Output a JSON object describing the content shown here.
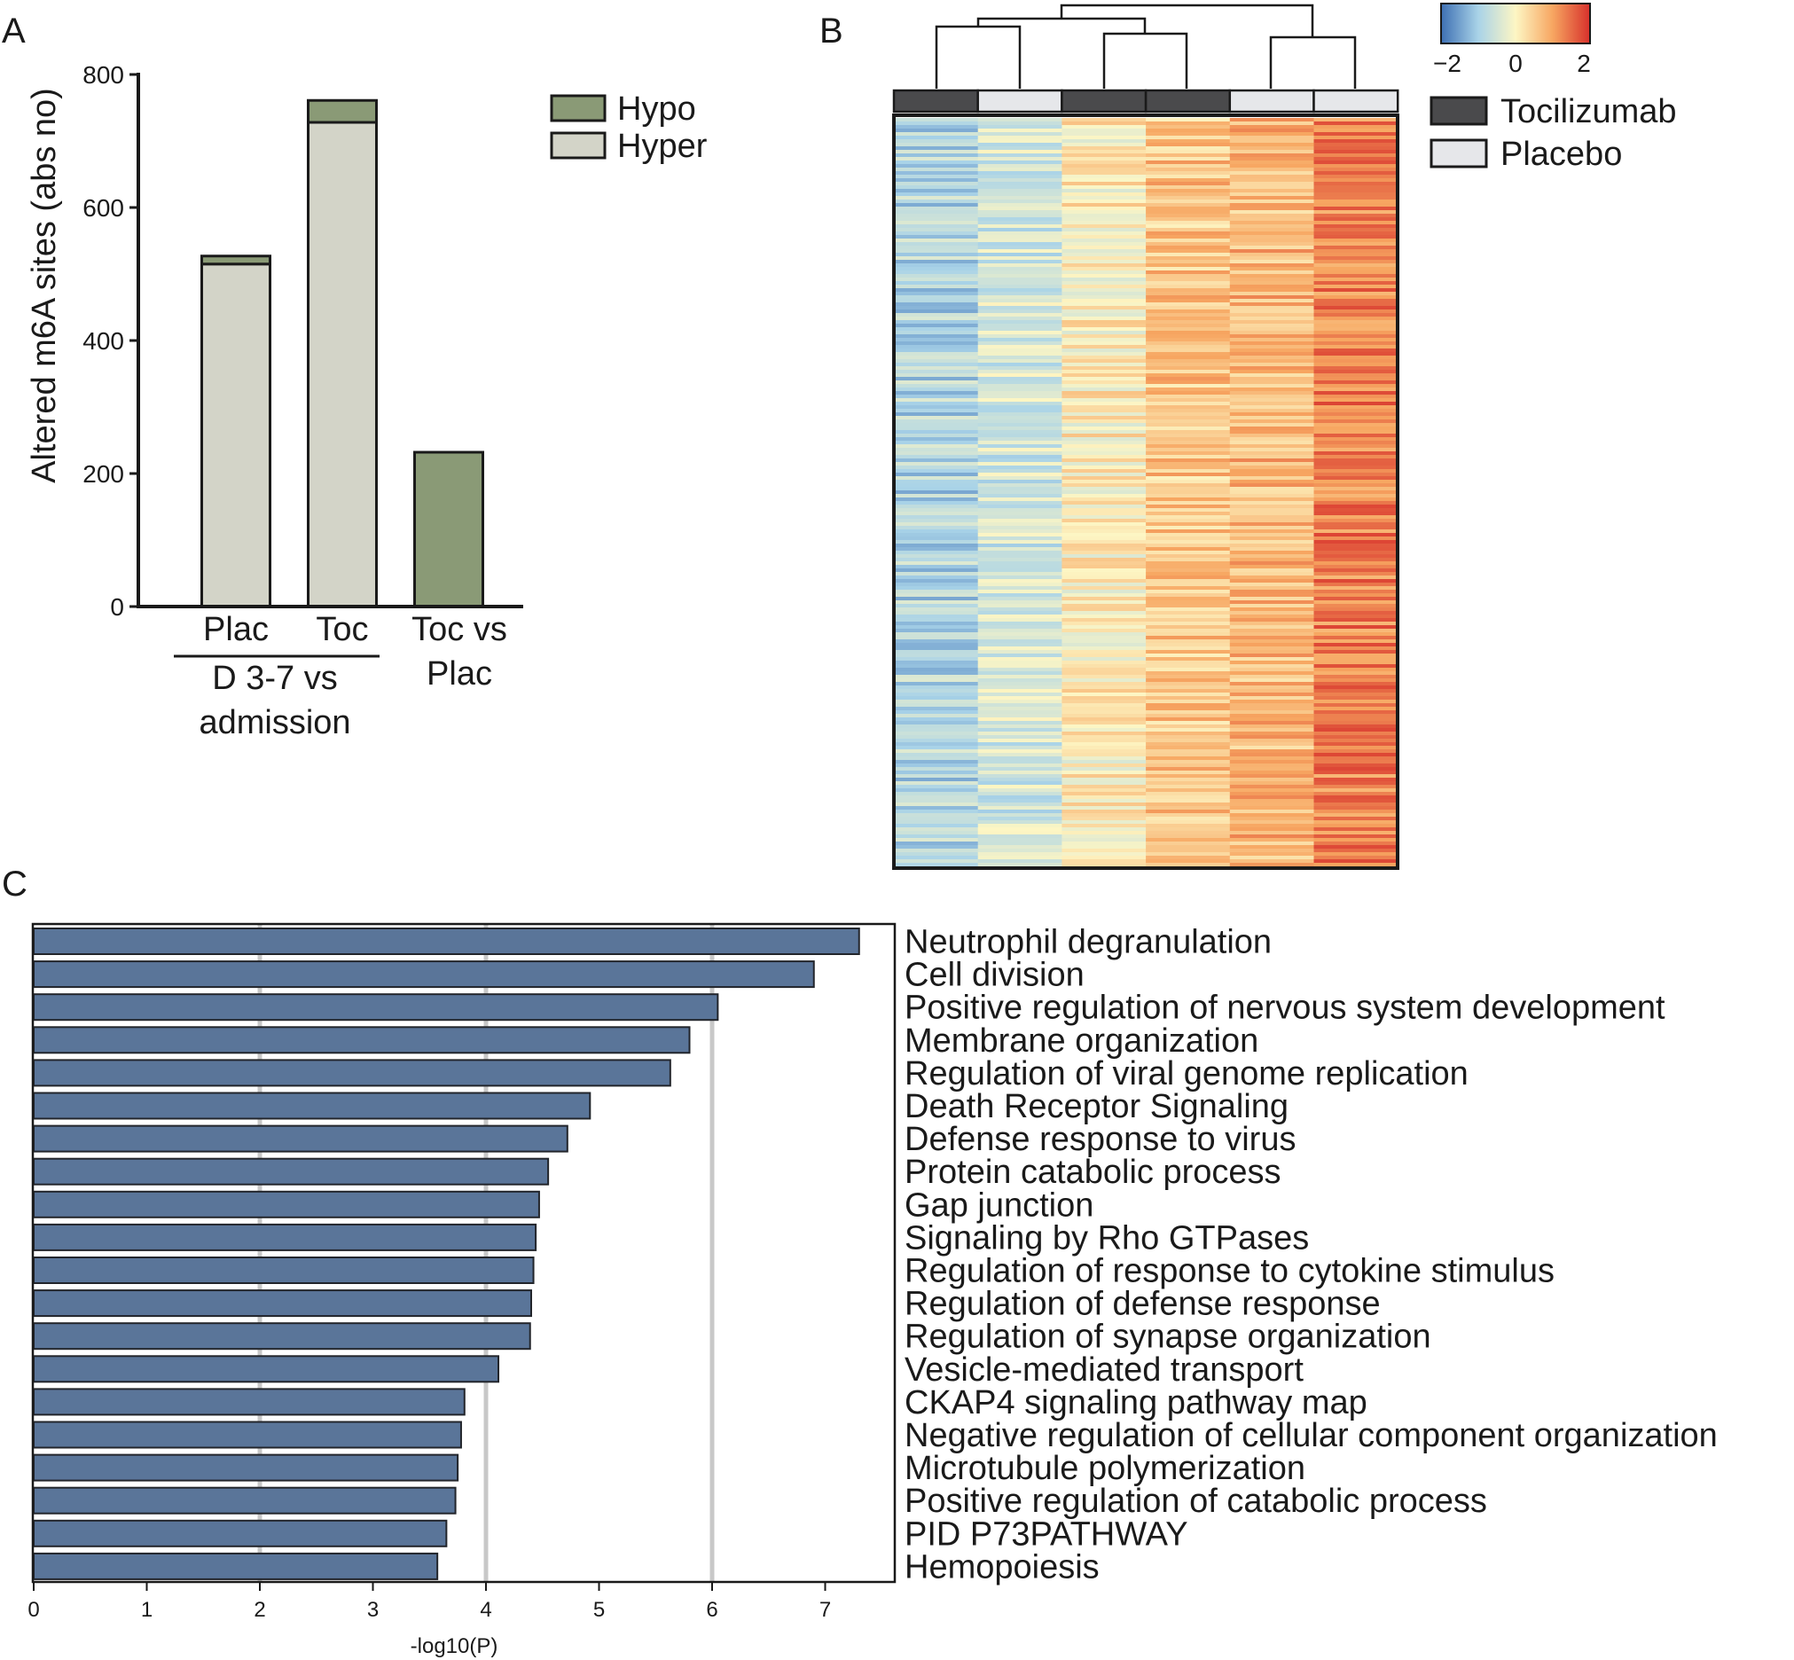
{
  "chart_data": [
    {
      "panel": "A",
      "type": "bar",
      "stacked": true,
      "ylabel": "Altered m6A sites (abs no)",
      "ylim": [
        0,
        800
      ],
      "yticks": [
        0,
        200,
        400,
        600,
        800
      ],
      "categories": [
        "Plac",
        "Toc",
        "Toc vs Plac"
      ],
      "category_lines": [
        [
          "Plac"
        ],
        [
          "Toc"
        ],
        [
          "Toc vs",
          "Plac"
        ]
      ],
      "group_label_lines": [
        "D 3-7 vs",
        "admission"
      ],
      "series": [
        {
          "name": "Hyper",
          "color": "#d3d4c8",
          "values": [
            515,
            728,
            0
          ]
        },
        {
          "name": "Hypo",
          "color": "#8a9a76",
          "values": [
            12,
            33,
            232
          ]
        }
      ],
      "legend_order": [
        "Hypo",
        "Hyper"
      ]
    },
    {
      "panel": "B",
      "type": "heatmap",
      "scale": {
        "min": -2,
        "mid": 0,
        "max": 2,
        "tick_labels": [
          "−2",
          "0",
          "2"
        ]
      },
      "samples": [
        {
          "group": "Tocilizumab",
          "level": -0.9
        },
        {
          "group": "Placebo",
          "level": -0.5
        },
        {
          "group": "Tocilizumab",
          "level": 0.1
        },
        {
          "group": "Tocilizumab",
          "level": 0.6
        },
        {
          "group": "Placebo",
          "level": 0.75
        },
        {
          "group": "Placebo",
          "level": 1.3
        }
      ],
      "legend": [
        {
          "label": "Tocilizumab",
          "color": "#4a4a4c"
        },
        {
          "label": "Placebo",
          "color": "#e6e7ea"
        }
      ]
    },
    {
      "panel": "C",
      "type": "bar",
      "orientation": "horizontal",
      "xlabel": "-log10(P)",
      "xlim": [
        0,
        7.6
      ],
      "xticks": [
        0,
        1,
        2,
        3,
        4,
        5,
        6,
        7
      ],
      "gridlines_at": [
        2,
        4,
        6
      ],
      "bar_color": "#5a7599",
      "categories": [
        "Neutrophil degranulation",
        "Cell division",
        "Positive regulation of nervous system development",
        "Membrane organization",
        "Regulation of viral genome replication",
        "Death Receptor Signaling",
        "Defense response to virus",
        "Protein catabolic process",
        "Gap junction",
        "Signaling by Rho GTPases",
        "Regulation of response to cytokine stimulus",
        "Regulation of defense response",
        "Regulation of synapse organization",
        "Vesicle-mediated transport",
        "CKAP4 signaling pathway map",
        "Negative regulation of cellular component organization",
        "Microtubule polymerization",
        "Positive regulation of catabolic process",
        "PID P73PATHWAY",
        "Hemopoiesis"
      ],
      "values": [
        7.3,
        6.9,
        6.05,
        5.8,
        5.63,
        4.92,
        4.72,
        4.55,
        4.47,
        4.44,
        4.42,
        4.4,
        4.39,
        4.11,
        3.81,
        3.78,
        3.75,
        3.73,
        3.65,
        3.57
      ]
    }
  ],
  "panel_labels": {
    "a": "A",
    "b": "B",
    "c": "C"
  }
}
